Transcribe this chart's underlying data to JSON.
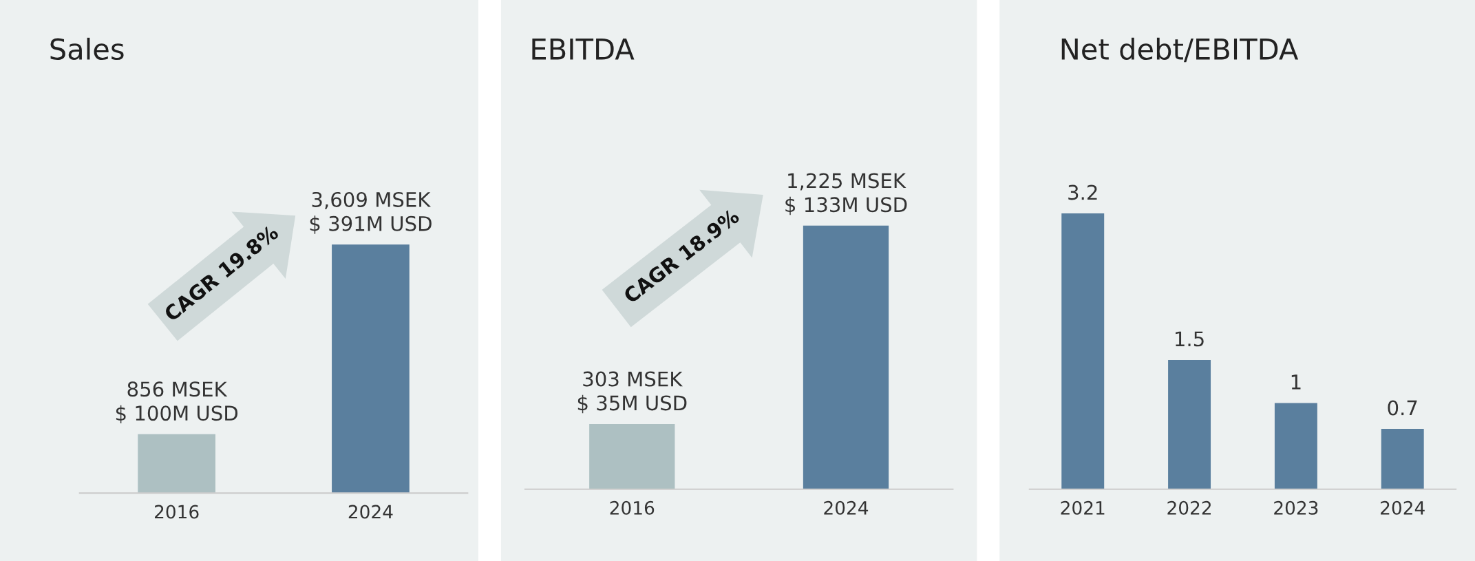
{
  "chart_data": [
    {
      "type": "bar",
      "title": "Sales",
      "categories": [
        "2016",
        "2024"
      ],
      "values": [
        856,
        3609
      ],
      "colors": [
        "#adc0c2",
        "#5a7f9e"
      ],
      "value_labels": [
        "856 MSEK\n$ 100M USD",
        "3,609 MSEK\n$ 391M USD"
      ],
      "annotations": [
        "CAGR 19.8%"
      ],
      "tick_labels": "x"
    },
    {
      "type": "bar",
      "title": "EBITDA",
      "categories": [
        "2016",
        "2024"
      ],
      "values": [
        303,
        1225
      ],
      "colors": [
        "#adc0c2",
        "#5a7f9e"
      ],
      "value_labels": [
        "303 MSEK\n$ 35M USD",
        "1,225 MSEK\n$ 133M USD"
      ],
      "annotations": [
        "CAGR 18.9%"
      ],
      "tick_labels": "x"
    },
    {
      "type": "bar",
      "title": "Net debt/EBITDA",
      "categories": [
        "2021",
        "2022",
        "2023",
        "2024"
      ],
      "values": [
        3.2,
        1.5,
        1,
        0.7
      ],
      "color": "#5a7f9e",
      "data_labels": true,
      "tick_labels": "x"
    }
  ]
}
